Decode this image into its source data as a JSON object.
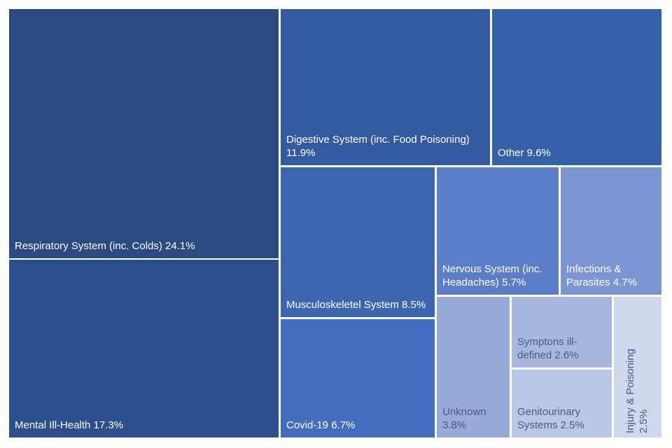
{
  "chart_data": {
    "type": "treemap",
    "title": "",
    "items": [
      {
        "id": "respiratory",
        "label": "Respiratory System (inc. Colds) 24.1%",
        "name": "Respiratory System (inc. Colds)",
        "value": 24.1,
        "color": "#2b4a82",
        "text_color": "#ffffff"
      },
      {
        "id": "mental",
        "label": "Mental Ill-Health 17.3%",
        "name": "Mental Ill-Health",
        "value": 17.3,
        "color": "#2c4e8c",
        "text_color": "#ffffff"
      },
      {
        "id": "digestive",
        "label": "Digestive System (inc. Food Poisoning)\n11.9%",
        "name": "Digestive System (inc. Food Poisoning)",
        "value": 11.9,
        "color": "#335aa0",
        "text_color": "#ffffff"
      },
      {
        "id": "other",
        "label": "Other 9.6%",
        "name": "Other",
        "value": 9.6,
        "color": "#3660a8",
        "text_color": "#ffffff"
      },
      {
        "id": "musculoskeletal",
        "label": "Musculoskeletel System 8.5%",
        "name": "Musculoskeletel System",
        "value": 8.5,
        "color": "#3d66b0",
        "text_color": "#ffffff"
      },
      {
        "id": "covid",
        "label": "Covid-19 6.7%",
        "name": "Covid-19",
        "value": 6.7,
        "color": "#436ebf",
        "text_color": "#ffffff"
      },
      {
        "id": "nervous",
        "label": "Nervous System (inc.\nHeadaches) 5.7%",
        "name": "Nervous System (inc. Headaches)",
        "value": 5.7,
        "color": "#5c7ec9",
        "text_color": "#ffffff"
      },
      {
        "id": "infections",
        "label": "Infections &\nParasites 4.7%",
        "name": "Infections & Parasites",
        "value": 4.7,
        "color": "#7a95d2",
        "text_color": "#ffffff"
      },
      {
        "id": "unknown",
        "label": "Unknown\n3.8%",
        "name": "Unknown",
        "value": 3.8,
        "color": "#97aad8",
        "text_color": "#4a5a80"
      },
      {
        "id": "symptoms",
        "label": "Symptons ill-\ndefined 2.6%",
        "name": "Symptons ill-defined",
        "value": 2.6,
        "color": "#a7b7de",
        "text_color": "#4a5a80"
      },
      {
        "id": "genitourinary",
        "label": "Genitourinary\nSystems 2.5%",
        "name": "Genitourinary Systems",
        "value": 2.5,
        "color": "#bac7e6",
        "text_color": "#4a5a80"
      },
      {
        "id": "injury",
        "label": "Injury & Poisoning\n2.5%",
        "name": "Injury & Poisoning",
        "value": 2.5,
        "color": "#d0d8ee",
        "text_color": "#4a5a80",
        "vertical": true
      }
    ]
  }
}
